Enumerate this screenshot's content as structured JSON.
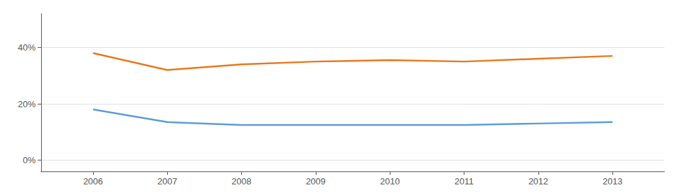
{
  "chart_data": {
    "type": "line",
    "x": [
      2006,
      2007,
      2008,
      2009,
      2010,
      2011,
      2012,
      2013
    ],
    "series": [
      {
        "color": "#E8761A",
        "values": [
          0.38,
          0.32,
          0.34,
          0.35,
          0.355,
          0.35,
          0.36,
          0.37
        ]
      },
      {
        "color": "#5B9BD5",
        "values": [
          0.18,
          0.135,
          0.125,
          0.125,
          0.125,
          0.125,
          0.13,
          0.135
        ]
      }
    ],
    "xlim": [
      2005.3,
      2013.7
    ],
    "xticks": [
      2006,
      2007,
      2008,
      2009,
      2010,
      2011,
      2012,
      2013
    ],
    "ylim": [
      -0.04,
      0.52
    ],
    "yticks": [
      {
        "value": 0.0,
        "label": "0%"
      },
      {
        "value": 0.2,
        "label": "20%"
      },
      {
        "value": 0.4,
        "label": "40%"
      }
    ],
    "grid": true
  }
}
